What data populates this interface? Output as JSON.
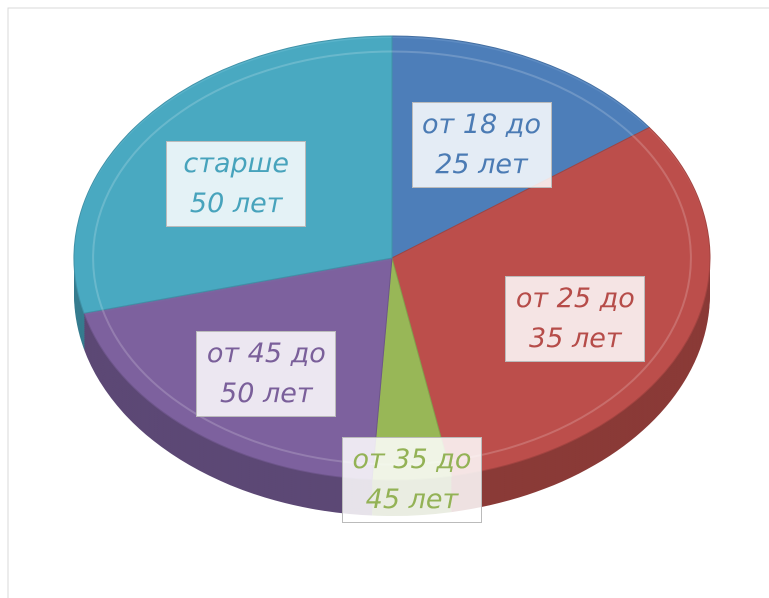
{
  "chart_data": {
    "type": "pie",
    "categories": [
      "от 18 до 25 лет",
      "от 25 до 35 лет",
      "от 35 до 45 лет",
      "от 45 до 50 лет",
      "старше 50 лет"
    ],
    "values": [
      15,
      32,
      4,
      20,
      29
    ],
    "colors": [
      "#4f81bd",
      "#c0504d",
      "#9bbb59",
      "#8064a2",
      "#4bacc6"
    ]
  }
}
